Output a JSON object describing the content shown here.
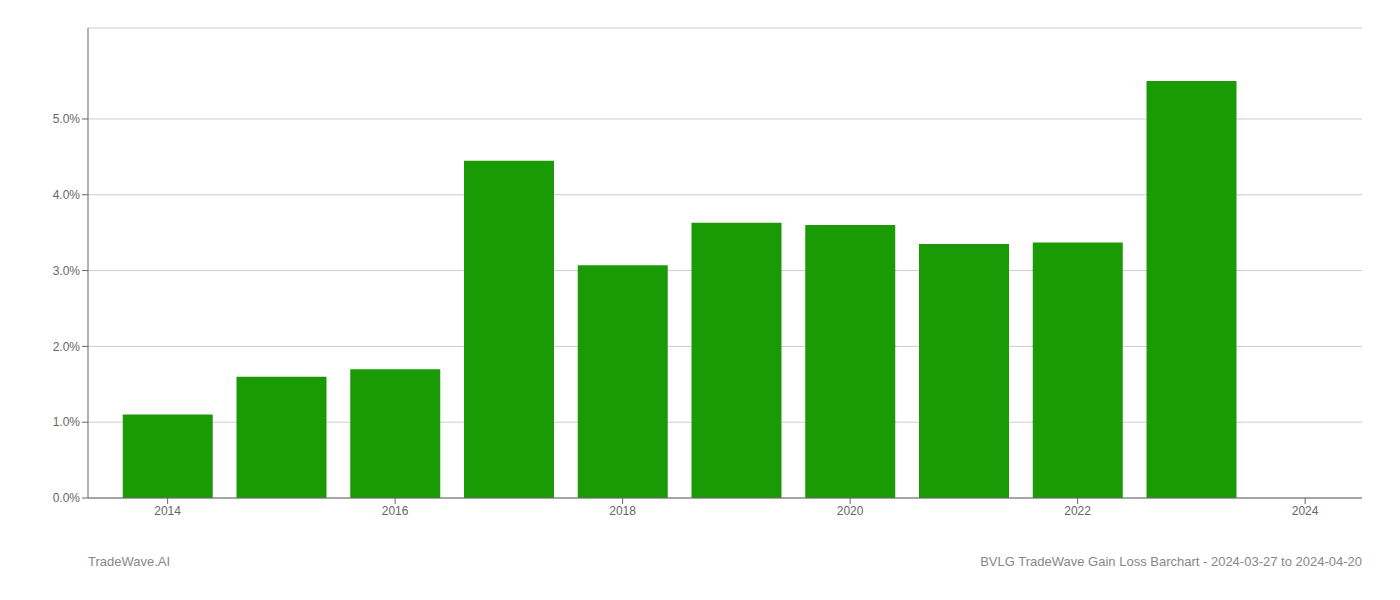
{
  "chart_data": {
    "type": "bar",
    "x": [
      2014,
      2015,
      2016,
      2017,
      2018,
      2019,
      2020,
      2021,
      2022,
      2023
    ],
    "values": [
      0.011,
      0.016,
      0.017,
      0.0445,
      0.0307,
      0.0363,
      0.036,
      0.0335,
      0.0337,
      0.055
    ],
    "color": "#1a9b06",
    "xlim": [
      2013.3,
      2024.5
    ],
    "xticks": [
      2014,
      2016,
      2018,
      2020,
      2022,
      2024
    ],
    "ylim": [
      0,
      0.062
    ],
    "yticks": [
      {
        "value": 0,
        "label": "0.0%"
      },
      {
        "value": 0.01,
        "label": "1.0%"
      },
      {
        "value": 0.02,
        "label": "2.0%"
      },
      {
        "value": 0.03,
        "label": "3.0%"
      },
      {
        "value": 0.04,
        "label": "4.0%"
      },
      {
        "value": 0.05,
        "label": "5.0%"
      }
    ],
    "grid": true,
    "annotations": [
      "TradeWave.AI",
      "BVLG TradeWave Gain Loss Barchart - 2024-03-27 to 2024-04-20"
    ]
  }
}
